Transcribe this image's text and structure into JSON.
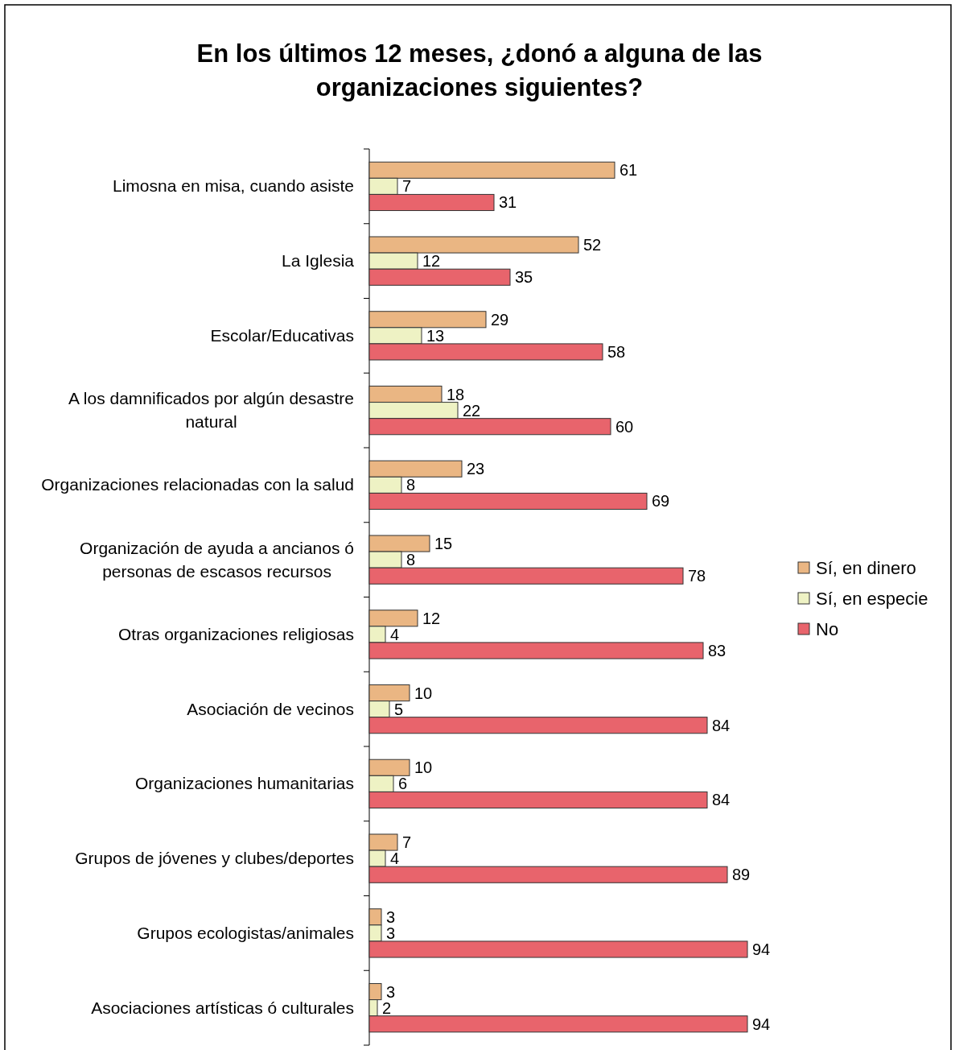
{
  "chart_data": {
    "type": "bar",
    "orientation": "horizontal",
    "title": "En los últimos 12 meses, ¿donó a alguna de las organizaciones siguientes?",
    "categories": [
      "Limosna en misa, cuando asiste",
      "La Iglesia",
      "Escolar/Educativas",
      "A los damnificados por algún desastre natural",
      "Organizaciones relacionadas con la salud",
      "Organización de ayuda a ancianos ó personas de escasos recursos",
      "Otras organizaciones religiosas",
      "Asociación de vecinos",
      "Organizaciones humanitarias",
      "Grupos de jóvenes y clubes/deportes",
      "Grupos ecologistas/animales",
      "Asociaciones artísticas ó culturales"
    ],
    "series": [
      {
        "name": "Sí, en dinero",
        "color": "#eab683",
        "values": [
          61,
          52,
          29,
          18,
          23,
          15,
          12,
          10,
          10,
          7,
          3,
          3
        ]
      },
      {
        "name": "Sí, en especie",
        "color": "#eef2c4",
        "values": [
          7,
          12,
          13,
          22,
          8,
          8,
          4,
          5,
          6,
          4,
          3,
          2
        ]
      },
      {
        "name": "No",
        "color": "#e8646c",
        "values": [
          31,
          35,
          58,
          60,
          69,
          78,
          83,
          84,
          84,
          89,
          94,
          94
        ]
      }
    ],
    "tick_labels": "y",
    "data_labels": true,
    "legend": "right"
  }
}
